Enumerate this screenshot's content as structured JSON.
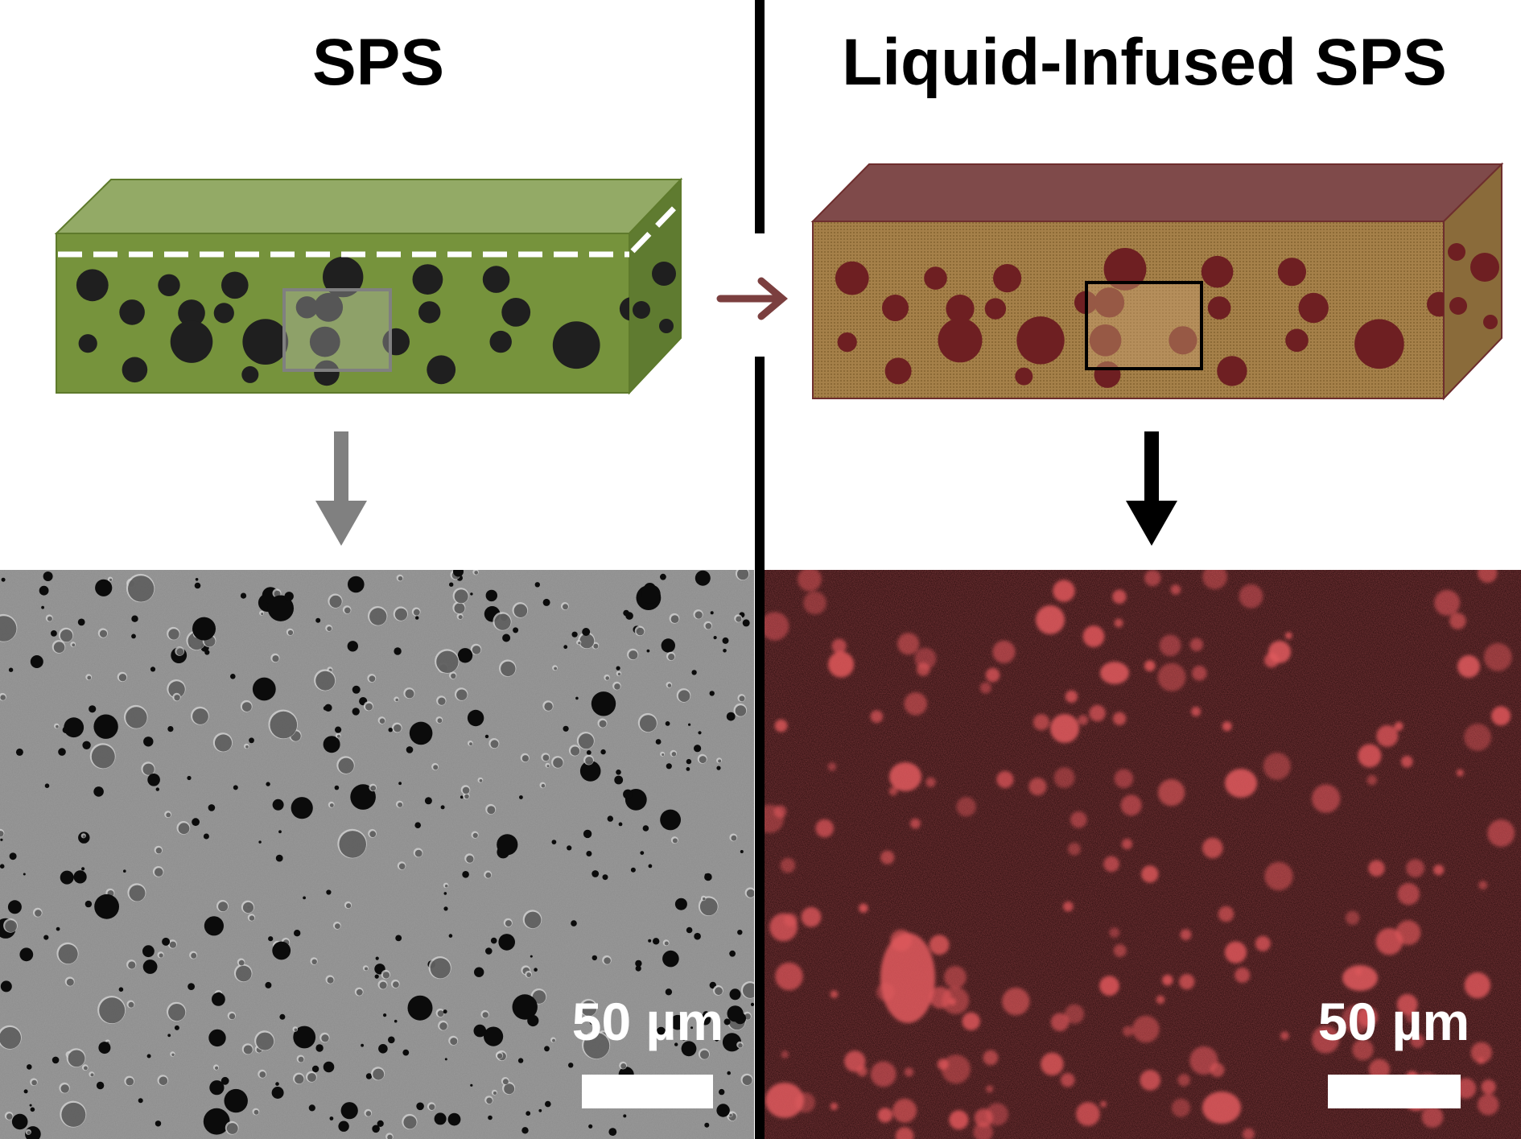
{
  "left_panel": {
    "title": "SPS",
    "scale_bar_label": "50 µm",
    "colors": {
      "block_front": "#76933c",
      "block_top": "#93aa66",
      "block_side": "#5f7b30",
      "pores": "#1f1f1f",
      "dashed_line": "#ffffff",
      "arrow": "#808080",
      "micrograph_base": "#8c8c8c"
    },
    "micrograph_type": "SEM micrograph"
  },
  "right_panel": {
    "title": "Liquid-Infused SPS",
    "scale_bar_label": "50 µm",
    "colors": {
      "block_front": "#a07a3e",
      "block_top": "#7f4a4a",
      "block_side": "#8a6b3a",
      "pores": "#6e1f22",
      "arrow": "#000000",
      "micrograph_base": "#1a0505",
      "fluorescence": "#d94c50"
    },
    "micrograph_type": "fluorescence micrograph"
  },
  "transition_arrow_color": "#7b3f3f",
  "divider_color": "#000000"
}
